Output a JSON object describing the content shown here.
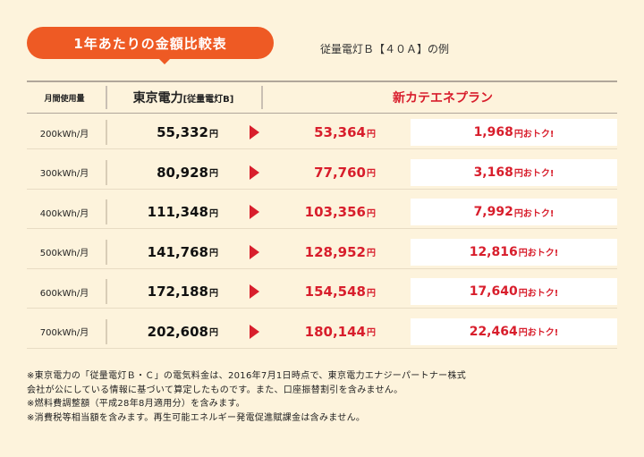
{
  "title_badge": "1年あたりの金額比較表",
  "plan_note": "従量電灯Ｂ【４０Ａ】の例",
  "header": {
    "usage": "月間使用量",
    "tepco": "東京電力",
    "tepco_sub": "[従量電灯B]",
    "new_plan": "新カテエネプラン"
  },
  "yen_unit": "円",
  "savings_suffix": "円おトク!",
  "rows": [
    {
      "usage": "200kWh/月",
      "tepco": "55,332",
      "new": "53,364",
      "save": "1,968"
    },
    {
      "usage": "300kWh/月",
      "tepco": "80,928",
      "new": "77,760",
      "save": "3,168"
    },
    {
      "usage": "400kWh/月",
      "tepco": "111,348",
      "new": "103,356",
      "save": "7,992"
    },
    {
      "usage": "500kWh/月",
      "tepco": "141,768",
      "new": "128,952",
      "save": "12,816"
    },
    {
      "usage": "600kWh/月",
      "tepco": "172,188",
      "new": "154,548",
      "save": "17,640"
    },
    {
      "usage": "700kWh/月",
      "tepco": "202,608",
      "new": "180,144",
      "save": "22,464"
    }
  ],
  "footnotes": [
    "※東京電力の「従量電灯Ｂ・Ｃ」の電気料金は、2016年7月1日時点で、東京電力エナジーパートナー株式",
    "会社が公にしている情報に基づいて算定したものです。また、口座振替割引を含みません。",
    "※燃料費調整額（平成28年8月適用分）を含みます。",
    "※消費税等相当額を含みます。再生可能エネルギー発電促進賦課金は含みません。"
  ],
  "colors": {
    "accent": "#ee5a24",
    "red": "#d81e2c",
    "background": "#fdf3dc"
  }
}
